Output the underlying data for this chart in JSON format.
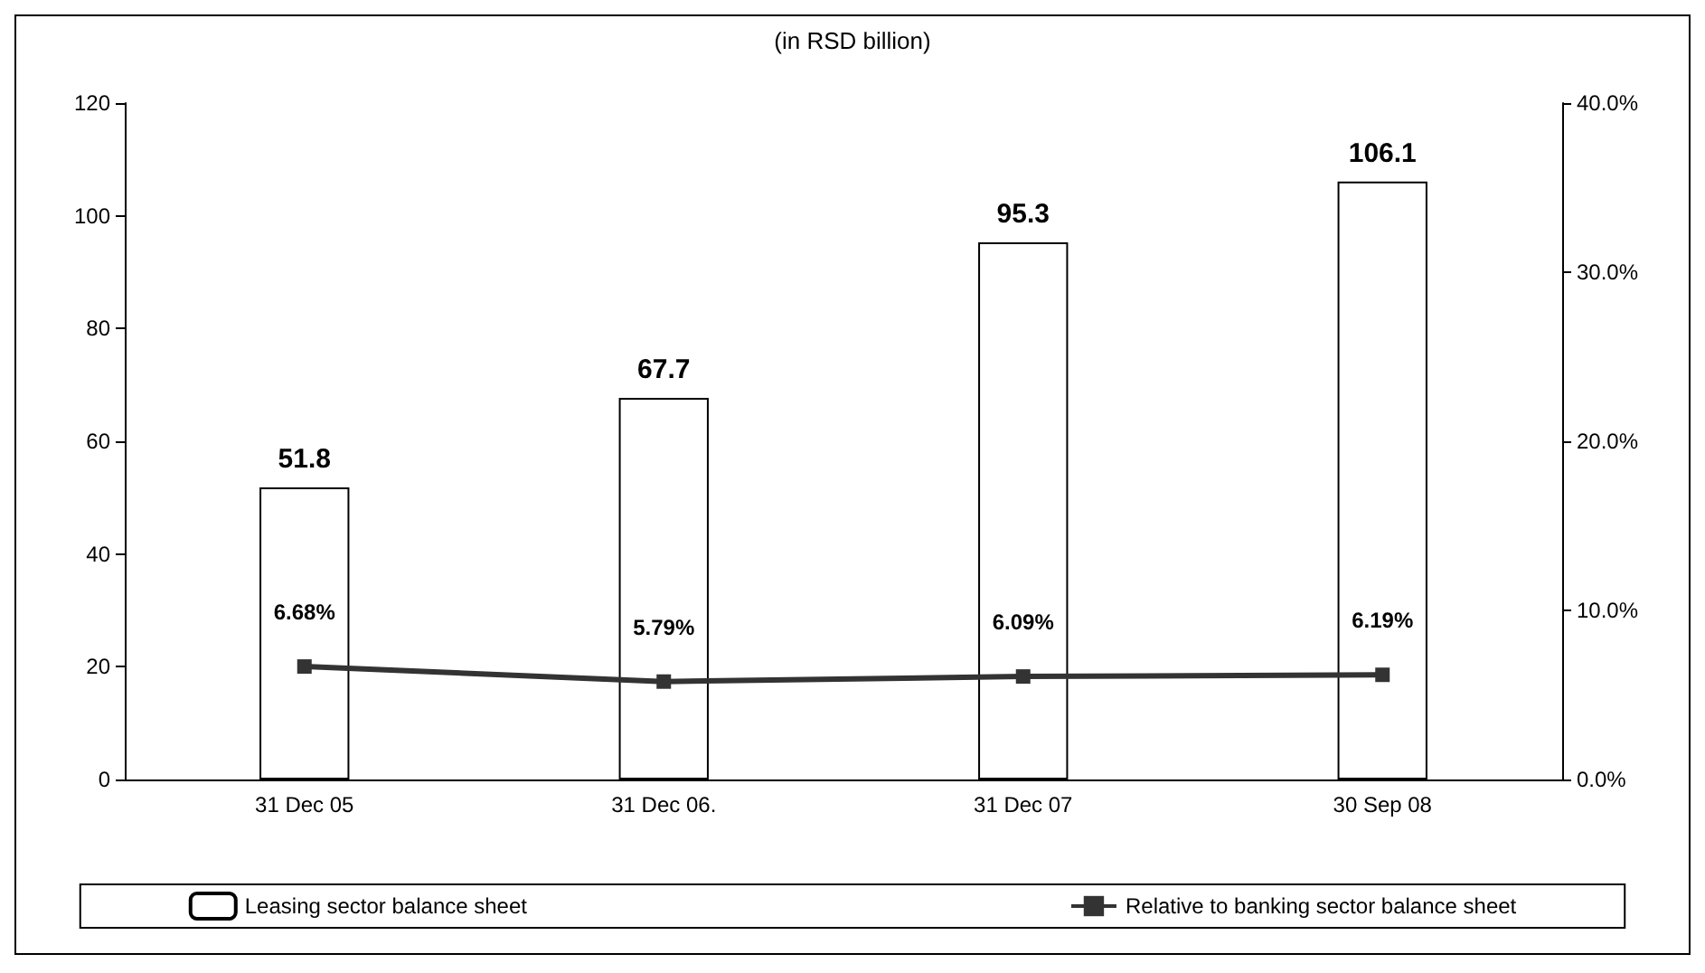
{
  "chart_data": {
    "type": "bar",
    "title": "(in RSD billion)",
    "categories": [
      "31 Dec 05",
      "31 Dec 06.",
      "31 Dec 07",
      "30 Sep 08"
    ],
    "series": [
      {
        "name": "Leasing sector balance sheet",
        "color": "#ffffff",
        "values": [
          51.8,
          67.7,
          95.3,
          106.1
        ],
        "value_labels": [
          "51.8",
          "67.7",
          "95.3",
          "106.1"
        ]
      },
      {
        "name": "Relative to banking sector balance sheet",
        "type": "line",
        "axis": "y2",
        "color": "#333333",
        "marker": "square",
        "values": [
          6.68,
          5.79,
          6.09,
          6.19
        ],
        "value_labels": [
          "6.68%",
          "5.79%",
          "6.09%",
          "6.19%"
        ]
      }
    ],
    "ylim": [
      0,
      120
    ],
    "yticks": [
      0,
      20,
      40,
      60,
      80,
      100,
      120
    ],
    "y2lim": [
      0,
      40
    ],
    "y2ticks": [
      {
        "value": 0,
        "label": "0.0%"
      },
      {
        "value": 10,
        "label": "10.0%"
      },
      {
        "value": 20,
        "label": "20.0%"
      },
      {
        "value": 30,
        "label": "30.0%"
      },
      {
        "value": 40,
        "label": "40.0%"
      }
    ],
    "grid": false,
    "legend": "bottom"
  }
}
